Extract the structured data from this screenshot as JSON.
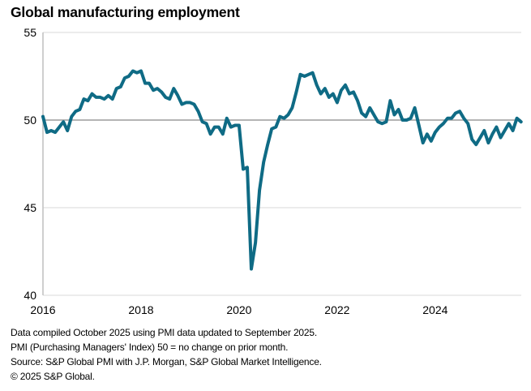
{
  "chart_data": {
    "type": "line",
    "title": "Global manufacturing employment",
    "xlabel": "",
    "ylabel": "",
    "ylim": [
      40,
      55
    ],
    "yticks": [
      "55",
      "50",
      "45",
      "40"
    ],
    "ytick_values": [
      55,
      50,
      45,
      40
    ],
    "xticks": [
      "2016",
      "2018",
      "2020",
      "2022",
      "2024"
    ],
    "xtick_values": [
      2016,
      2018,
      2020,
      2022,
      2024
    ],
    "x_start": "2016-01",
    "x_end": "2025-09",
    "reference_line": 50,
    "grid": true,
    "series": [
      {
        "name": "Global manufacturing employment PMI",
        "color": "#0f6b85",
        "values": [
          50.2,
          49.3,
          49.4,
          49.3,
          49.6,
          49.9,
          49.4,
          50.2,
          50.5,
          50.6,
          51.2,
          51.1,
          51.5,
          51.3,
          51.3,
          51.2,
          51.4,
          51.2,
          51.8,
          51.9,
          52.4,
          52.5,
          52.8,
          52.7,
          52.8,
          52.1,
          52.1,
          51.7,
          51.8,
          51.6,
          51.3,
          51.2,
          51.8,
          51.4,
          50.9,
          51.0,
          51.0,
          50.9,
          50.5,
          49.9,
          49.8,
          49.2,
          49.6,
          49.6,
          49.2,
          50.1,
          49.6,
          49.7,
          49.7,
          47.2,
          47.3,
          41.5,
          43.0,
          46.0,
          47.6,
          48.6,
          49.5,
          49.6,
          50.2,
          50.1,
          50.3,
          50.7,
          51.6,
          52.6,
          52.5,
          52.6,
          52.7,
          52.0,
          51.5,
          51.8,
          51.3,
          51.5,
          51.0,
          51.7,
          52.0,
          51.5,
          51.6,
          51.1,
          50.4,
          50.2,
          50.7,
          50.3,
          49.9,
          49.8,
          49.9,
          51.1,
          50.3,
          50.6,
          50.0,
          50.0,
          50.1,
          50.7,
          49.7,
          48.7,
          49.2,
          48.8,
          49.3,
          49.6,
          49.8,
          50.1,
          50.1,
          50.4,
          50.5,
          50.1,
          49.8,
          48.9,
          48.6,
          49.0,
          49.4,
          48.7,
          49.2,
          49.6,
          49.0,
          49.4,
          49.8,
          49.4,
          50.1,
          49.9
        ]
      }
    ]
  },
  "notes": [
    "Data compiled October 2025 using PMI data updated to September 2025.",
    "PMI (Purchasing Managers' Index) 50 = no change on prior month.",
    "Source: S&P Global PMI with J.P. Morgan, S&P Global Market Intelligence.",
    "© 2025 S&P Global."
  ]
}
